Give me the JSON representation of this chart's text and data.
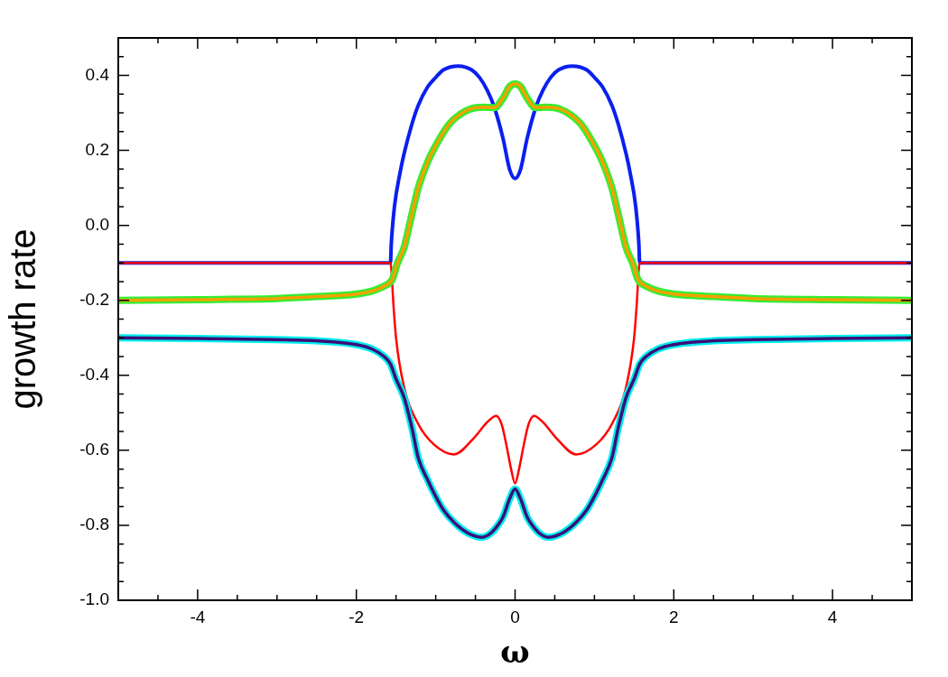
{
  "chart_data": {
    "type": "line",
    "xlabel": "ω",
    "ylabel": "growth rate",
    "xlim": [
      -5,
      5
    ],
    "ylim": [
      -1,
      0.5
    ],
    "xticks": [
      {
        "value": -5,
        "label": null
      },
      {
        "value": -4.5,
        "label": null
      },
      -4,
      {
        "value": -3.5,
        "label": null
      },
      {
        "value": -3,
        "label": null
      },
      {
        "value": -2.5,
        "label": null
      },
      -2,
      {
        "value": -1.5,
        "label": null
      },
      {
        "value": -1,
        "label": null
      },
      {
        "value": -0.5,
        "label": null
      },
      0,
      {
        "value": 0.5,
        "label": null
      },
      {
        "value": 1,
        "label": null
      },
      {
        "value": 1.5,
        "label": null
      },
      2,
      {
        "value": 2.5,
        "label": null
      },
      {
        "value": 3,
        "label": null
      },
      {
        "value": 3.5,
        "label": null
      },
      4,
      {
        "value": 4.5,
        "label": null
      },
      {
        "value": 5,
        "label": null
      }
    ],
    "yticks": [
      {
        "value": -1,
        "label": "-1.0"
      },
      {
        "value": -0.95,
        "label": null
      },
      {
        "value": -0.9,
        "label": null
      },
      {
        "value": -0.85,
        "label": null
      },
      -0.8,
      {
        "value": -0.75,
        "label": null
      },
      {
        "value": -0.7,
        "label": null
      },
      {
        "value": -0.65,
        "label": null
      },
      -0.6,
      {
        "value": -0.55,
        "label": null
      },
      {
        "value": -0.5,
        "label": null
      },
      {
        "value": -0.45,
        "label": null
      },
      -0.4,
      {
        "value": -0.35,
        "label": null
      },
      {
        "value": -0.3,
        "label": null
      },
      {
        "value": -0.25,
        "label": null
      },
      -0.2,
      {
        "value": -0.15,
        "label": null
      },
      {
        "value": -0.1,
        "label": null
      },
      {
        "value": -0.05,
        "label": null
      },
      {
        "value": 0,
        "label": "0.0"
      },
      {
        "value": 0.05,
        "label": null
      },
      {
        "value": 0.1,
        "label": null
      },
      {
        "value": 0.15,
        "label": null
      },
      0.2,
      {
        "value": 0.25,
        "label": null
      },
      {
        "value": 0.3,
        "label": null
      },
      {
        "value": 0.35,
        "label": null
      },
      0.4,
      {
        "value": 0.45,
        "label": null
      },
      {
        "value": 0.5,
        "label": null
      }
    ],
    "grid": false,
    "legend": false,
    "marker": "none",
    "line_style": "solid",
    "series": [
      {
        "color": "#0a1ff0",
        "x": [
          -5,
          -1.57,
          -1.56,
          -1.52,
          -1.45,
          -1.4,
          -1.3,
          -1.22,
          -1.1,
          -1.02,
          -0.9,
          -0.72,
          -0.55,
          -0.45,
          -0.35,
          -0.26,
          -0.15,
          -0.07,
          0,
          0.07,
          0.15,
          0.26,
          0.35,
          0.45,
          0.55,
          0.72,
          0.9,
          1.02,
          1.1,
          1.22,
          1.3,
          1.4,
          1.45,
          1.52,
          1.56,
          1.57,
          5
        ],
        "values": [
          -0.1,
          -0.1,
          -0.05,
          0.05,
          0.14,
          0.19,
          0.27,
          0.32,
          0.37,
          0.39,
          0.415,
          0.425,
          0.415,
          0.395,
          0.36,
          0.314,
          0.23,
          0.15,
          0.125,
          0.15,
          0.23,
          0.314,
          0.36,
          0.395,
          0.415,
          0.425,
          0.415,
          0.39,
          0.37,
          0.32,
          0.27,
          0.19,
          0.14,
          0.05,
          -0.05,
          -0.1,
          -0.1
        ]
      },
      {
        "color": "#ff0000",
        "x": [
          -5,
          -1.57,
          -1.53,
          -1.5,
          -1.4,
          -1.22,
          -1.02,
          -0.77,
          -0.53,
          -0.35,
          -0.24,
          -0.17,
          -0.11,
          -0.05,
          0,
          0.05,
          0.11,
          0.17,
          0.24,
          0.35,
          0.53,
          0.77,
          1.02,
          1.22,
          1.4,
          1.5,
          1.53,
          1.57,
          5
        ],
        "values": [
          -0.1,
          -0.1,
          -0.22,
          -0.3,
          -0.43,
          -0.53,
          -0.585,
          -0.611,
          -0.57,
          -0.525,
          -0.508,
          -0.53,
          -0.585,
          -0.65,
          -0.688,
          -0.65,
          -0.585,
          -0.53,
          -0.508,
          -0.525,
          -0.57,
          -0.611,
          -0.585,
          -0.53,
          -0.43,
          -0.3,
          -0.22,
          -0.1,
          -0.1
        ]
      },
      {
        "color": "#33ee33",
        "x": [
          -5,
          -4,
          -3,
          -2.5,
          -2,
          -1.8,
          -1.65,
          -1.55,
          -1.48,
          -1.4,
          -1.3,
          -1.22,
          -1.1,
          -1.02,
          -0.83,
          -0.7,
          -0.57,
          -0.4,
          -0.26,
          -0.15,
          -0.07,
          0,
          0.07,
          0.15,
          0.26,
          0.4,
          0.57,
          0.7,
          0.83,
          1.02,
          1.1,
          1.22,
          1.3,
          1.4,
          1.48,
          1.55,
          1.65,
          1.8,
          2,
          2.5,
          3,
          4,
          5
        ],
        "values": [
          -0.2,
          -0.198,
          -0.195,
          -0.19,
          -0.183,
          -0.175,
          -0.162,
          -0.145,
          -0.1,
          -0.06,
          0.03,
          0.1,
          0.17,
          0.205,
          0.27,
          0.295,
          0.31,
          0.315,
          0.314,
          0.34,
          0.37,
          0.377,
          0.37,
          0.34,
          0.314,
          0.315,
          0.31,
          0.295,
          0.27,
          0.205,
          0.17,
          0.1,
          0.03,
          -0.06,
          -0.1,
          -0.145,
          -0.162,
          -0.175,
          -0.183,
          -0.19,
          -0.195,
          -0.198,
          -0.2
        ]
      },
      {
        "color": "#f5a000",
        "x": [
          -5,
          -4,
          -3,
          -2.5,
          -2,
          -1.8,
          -1.65,
          -1.55,
          -1.48,
          -1.4,
          -1.3,
          -1.22,
          -1.1,
          -1.02,
          -0.83,
          -0.7,
          -0.57,
          -0.4,
          -0.26,
          -0.15,
          -0.07,
          0,
          0.07,
          0.15,
          0.26,
          0.4,
          0.57,
          0.7,
          0.83,
          1.02,
          1.1,
          1.22,
          1.3,
          1.4,
          1.48,
          1.55,
          1.65,
          1.8,
          2,
          2.5,
          3,
          4,
          5
        ],
        "values": [
          -0.2,
          -0.198,
          -0.195,
          -0.19,
          -0.183,
          -0.175,
          -0.162,
          -0.145,
          -0.1,
          -0.06,
          0.03,
          0.1,
          0.17,
          0.205,
          0.27,
          0.295,
          0.31,
          0.315,
          0.314,
          0.34,
          0.37,
          0.377,
          0.37,
          0.34,
          0.314,
          0.315,
          0.31,
          0.295,
          0.27,
          0.205,
          0.17,
          0.1,
          0.03,
          -0.06,
          -0.1,
          -0.145,
          -0.162,
          -0.175,
          -0.183,
          -0.19,
          -0.195,
          -0.198,
          -0.2
        ]
      },
      {
        "color": "#00eeee",
        "x": [
          -5,
          -4,
          -3,
          -2.5,
          -2,
          -1.8,
          -1.65,
          -1.57,
          -1.5,
          -1.4,
          -1.3,
          -1.22,
          -1.1,
          -1.02,
          -0.9,
          -0.76,
          -0.6,
          -0.42,
          -0.3,
          -0.2,
          -0.15,
          -0.07,
          0,
          0.07,
          0.15,
          0.2,
          0.3,
          0.42,
          0.6,
          0.76,
          0.9,
          1.02,
          1.1,
          1.22,
          1.3,
          1.4,
          1.5,
          1.57,
          1.65,
          1.8,
          2,
          2.5,
          3,
          4,
          5
        ],
        "values": [
          -0.3,
          -0.302,
          -0.305,
          -0.308,
          -0.318,
          -0.33,
          -0.35,
          -0.37,
          -0.41,
          -0.458,
          -0.54,
          -0.62,
          -0.68,
          -0.715,
          -0.76,
          -0.794,
          -0.82,
          -0.832,
          -0.82,
          -0.795,
          -0.777,
          -0.73,
          -0.703,
          -0.73,
          -0.777,
          -0.795,
          -0.82,
          -0.832,
          -0.82,
          -0.794,
          -0.76,
          -0.715,
          -0.68,
          -0.62,
          -0.54,
          -0.458,
          -0.41,
          -0.37,
          -0.35,
          -0.33,
          -0.318,
          -0.308,
          -0.305,
          -0.302,
          -0.3
        ]
      },
      {
        "color": "#3c0f78",
        "x": [
          -5,
          -4,
          -3,
          -2.5,
          -2,
          -1.8,
          -1.65,
          -1.57,
          -1.5,
          -1.4,
          -1.3,
          -1.22,
          -1.1,
          -1.02,
          -0.9,
          -0.76,
          -0.6,
          -0.42,
          -0.3,
          -0.2,
          -0.15,
          -0.07,
          0,
          0.07,
          0.15,
          0.2,
          0.3,
          0.42,
          0.6,
          0.76,
          0.9,
          1.02,
          1.1,
          1.22,
          1.3,
          1.4,
          1.5,
          1.57,
          1.65,
          1.8,
          2,
          2.5,
          3,
          4,
          5
        ],
        "values": [
          -0.3,
          -0.302,
          -0.305,
          -0.308,
          -0.318,
          -0.33,
          -0.35,
          -0.37,
          -0.41,
          -0.458,
          -0.54,
          -0.62,
          -0.68,
          -0.715,
          -0.76,
          -0.794,
          -0.82,
          -0.832,
          -0.82,
          -0.795,
          -0.777,
          -0.73,
          -0.703,
          -0.73,
          -0.777,
          -0.795,
          -0.82,
          -0.832,
          -0.82,
          -0.794,
          -0.76,
          -0.715,
          -0.68,
          -0.62,
          -0.54,
          -0.458,
          -0.41,
          -0.37,
          -0.35,
          -0.33,
          -0.318,
          -0.308,
          -0.305,
          -0.302,
          -0.3
        ]
      }
    ]
  }
}
